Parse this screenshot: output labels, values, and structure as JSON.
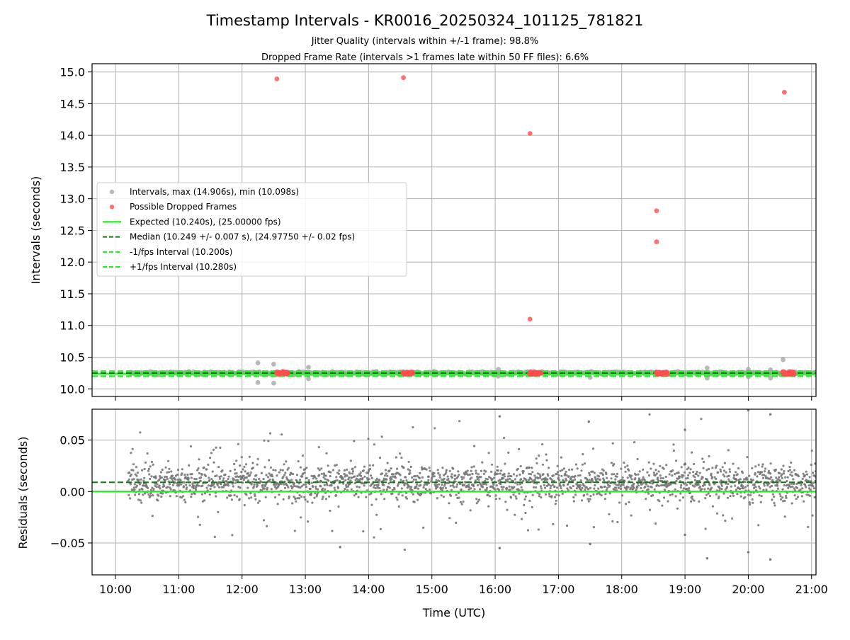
{
  "title": "Timestamp Intervals - KR0016_20250324_101125_781821",
  "subtitle_1": "Jitter Quality (intervals within +/-1 frame): 98.8%",
  "subtitle_2": "Dropped Frame Rate (intervals >1 frames late within 50 FF files): 6.6%",
  "colors": {
    "intervals": "#a6a6a6",
    "dropped": "#ff4d4d",
    "expected": "#22ee22",
    "median": "#117711",
    "residual_points": "#777777",
    "grid": "#b0b0b0"
  },
  "chart_data": [
    {
      "type": "scatter",
      "ylabel": "Intervals (seconds)",
      "xlim": [
        9.63,
        21.07
      ],
      "ylim": [
        9.88,
        15.13
      ],
      "grid": true,
      "legend_position": "center-left",
      "yticks": [
        10.0,
        10.5,
        11.0,
        11.5,
        12.0,
        12.5,
        13.0,
        13.5,
        14.0,
        14.5,
        15.0
      ],
      "ytick_labels": [
        "10.0",
        "10.5",
        "11.0",
        "11.5",
        "12.0",
        "12.5",
        "13.0",
        "13.5",
        "14.0",
        "14.5",
        "15.0"
      ],
      "legend": [
        "Intervals, max (14.906s), min (10.098s)",
        "Possible Dropped Frames",
        "Expected (10.240s), (25.00000 fps)",
        "Median (10.249 +/- 0.007 s), (24.97750 +/- 0.02 fps)",
        "-1/fps Interval (10.200s)",
        "+1/fps Interval (10.280s)"
      ],
      "series": [
        {
          "name": "Intervals, max (14.906s), min (10.098s)",
          "baseline": 10.249,
          "spread": 0.012,
          "x_range": [
            10.2,
            21.07
          ],
          "outliers": [
            {
              "x": 12.25,
              "y": 10.41
            },
            {
              "x": 12.25,
              "y": 10.1
            },
            {
              "x": 12.5,
              "y": 10.39
            },
            {
              "x": 12.5,
              "y": 10.09
            },
            {
              "x": 13.05,
              "y": 10.34
            },
            {
              "x": 13.05,
              "y": 10.16
            },
            {
              "x": 16.05,
              "y": 10.31
            },
            {
              "x": 16.05,
              "y": 10.2
            },
            {
              "x": 17.5,
              "y": 10.18
            },
            {
              "x": 19.35,
              "y": 10.33
            },
            {
              "x": 19.35,
              "y": 10.17
            },
            {
              "x": 20.0,
              "y": 10.31
            },
            {
              "x": 20.0,
              "y": 10.19
            },
            {
              "x": 20.35,
              "y": 10.3
            },
            {
              "x": 20.35,
              "y": 10.17
            },
            {
              "x": 20.55,
              "y": 10.46
            }
          ]
        },
        {
          "name": "Possible Dropped Frames",
          "points": [
            {
              "x": 12.55,
              "y": 14.89
            },
            {
              "x": 14.55,
              "y": 14.91
            },
            {
              "x": 16.55,
              "y": 14.03
            },
            {
              "x": 16.55,
              "y": 11.1
            },
            {
              "x": 18.55,
              "y": 12.81
            },
            {
              "x": 18.55,
              "y": 12.32
            },
            {
              "x": 20.57,
              "y": 14.68
            }
          ],
          "clusters": [
            {
              "x0": 12.55,
              "x1": 12.72,
              "y": 10.25
            },
            {
              "x0": 14.55,
              "x1": 14.7,
              "y": 10.25
            },
            {
              "x0": 16.55,
              "x1": 16.72,
              "y": 10.25
            },
            {
              "x0": 18.55,
              "x1": 18.72,
              "y": 10.25
            },
            {
              "x0": 20.55,
              "x1": 20.72,
              "y": 10.25
            }
          ]
        },
        {
          "name": "Expected (10.240s), (25.00000 fps)",
          "y": 10.24
        },
        {
          "name": "Median (10.249 +/- 0.007 s), (24.97750 +/- 0.02 fps)",
          "y": 10.249
        },
        {
          "name": "-1/fps Interval (10.200s)",
          "y": 10.2
        },
        {
          "name": "+1/fps Interval (10.280s)",
          "y": 10.28
        }
      ]
    },
    {
      "type": "scatter",
      "ylabel": "Residuals (seconds)",
      "xlabel": "Time (UTC)",
      "xlim": [
        9.63,
        21.07
      ],
      "ylim": [
        -0.081,
        0.08
      ],
      "grid": true,
      "yticks": [
        -0.05,
        0.0,
        0.05
      ],
      "ytick_labels": [
        "−0.05",
        "0.00",
        "0.05"
      ],
      "xticks": [
        10,
        11,
        12,
        13,
        14,
        15,
        16,
        17,
        18,
        19,
        20,
        21
      ],
      "xtick_labels": [
        "10:00",
        "11:00",
        "12:00",
        "13:00",
        "14:00",
        "15:00",
        "16:00",
        "17:00",
        "18:00",
        "19:00",
        "20:00",
        "21:00"
      ],
      "series": [
        {
          "name": "residuals",
          "baseline": 0.009,
          "spread": 0.012,
          "x_range": [
            10.2,
            21.07
          ],
          "outliers": [
            {
              "x": 16.07,
              "y": 0.073
            },
            {
              "x": 16.07,
              "y": -0.055
            },
            {
              "x": 17.48,
              "y": 0.068
            },
            {
              "x": 17.5,
              "y": -0.051
            },
            {
              "x": 13.55,
              "y": -0.054
            },
            {
              "x": 19.0,
              "y": 0.06
            },
            {
              "x": 19.0,
              "y": -0.042
            },
            {
              "x": 19.35,
              "y": -0.065
            },
            {
              "x": 20.0,
              "y": -0.059
            },
            {
              "x": 20.0,
              "y": 0.079
            },
            {
              "x": 20.35,
              "y": 0.075
            },
            {
              "x": 20.35,
              "y": -0.066
            }
          ]
        },
        {
          "name": "expected",
          "y": 0.0
        },
        {
          "name": "median",
          "y": 0.009
        }
      ]
    }
  ]
}
